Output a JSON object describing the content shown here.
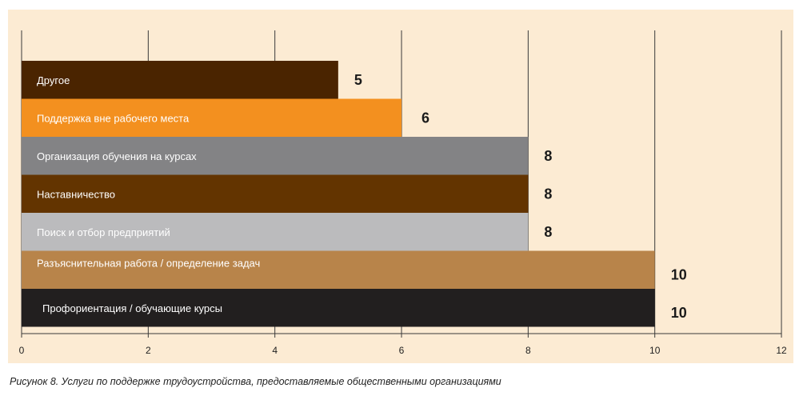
{
  "caption": "Рисунок 8. Услуги по поддержке трудоустройства, предоставляемые общественными организациями",
  "chart_data": {
    "type": "bar",
    "orientation": "horizontal",
    "xlim": [
      0,
      12
    ],
    "x_ticks": [
      "0",
      "2",
      "4",
      "6",
      "8",
      "10",
      "12"
    ],
    "grid": "vertical",
    "categories": [
      "Другое",
      "Поддержка вне рабочего места",
      "Организация обучения на курсах",
      "Наставничество",
      "Поиск и отбор предприятий",
      "Разъяснительная работа / определение задач",
      "Профориентация / обучающие курсы"
    ],
    "values": [
      5,
      6,
      8,
      8,
      8,
      10,
      10
    ],
    "value_labels": [
      "5",
      "6",
      "8",
      "8",
      "8",
      "10",
      "10"
    ],
    "bar_colors": [
      "#4a2400",
      "#f3901f",
      "#838385",
      "#633400",
      "#bbbbbd",
      "#b8844a",
      "#221f1f"
    ]
  }
}
